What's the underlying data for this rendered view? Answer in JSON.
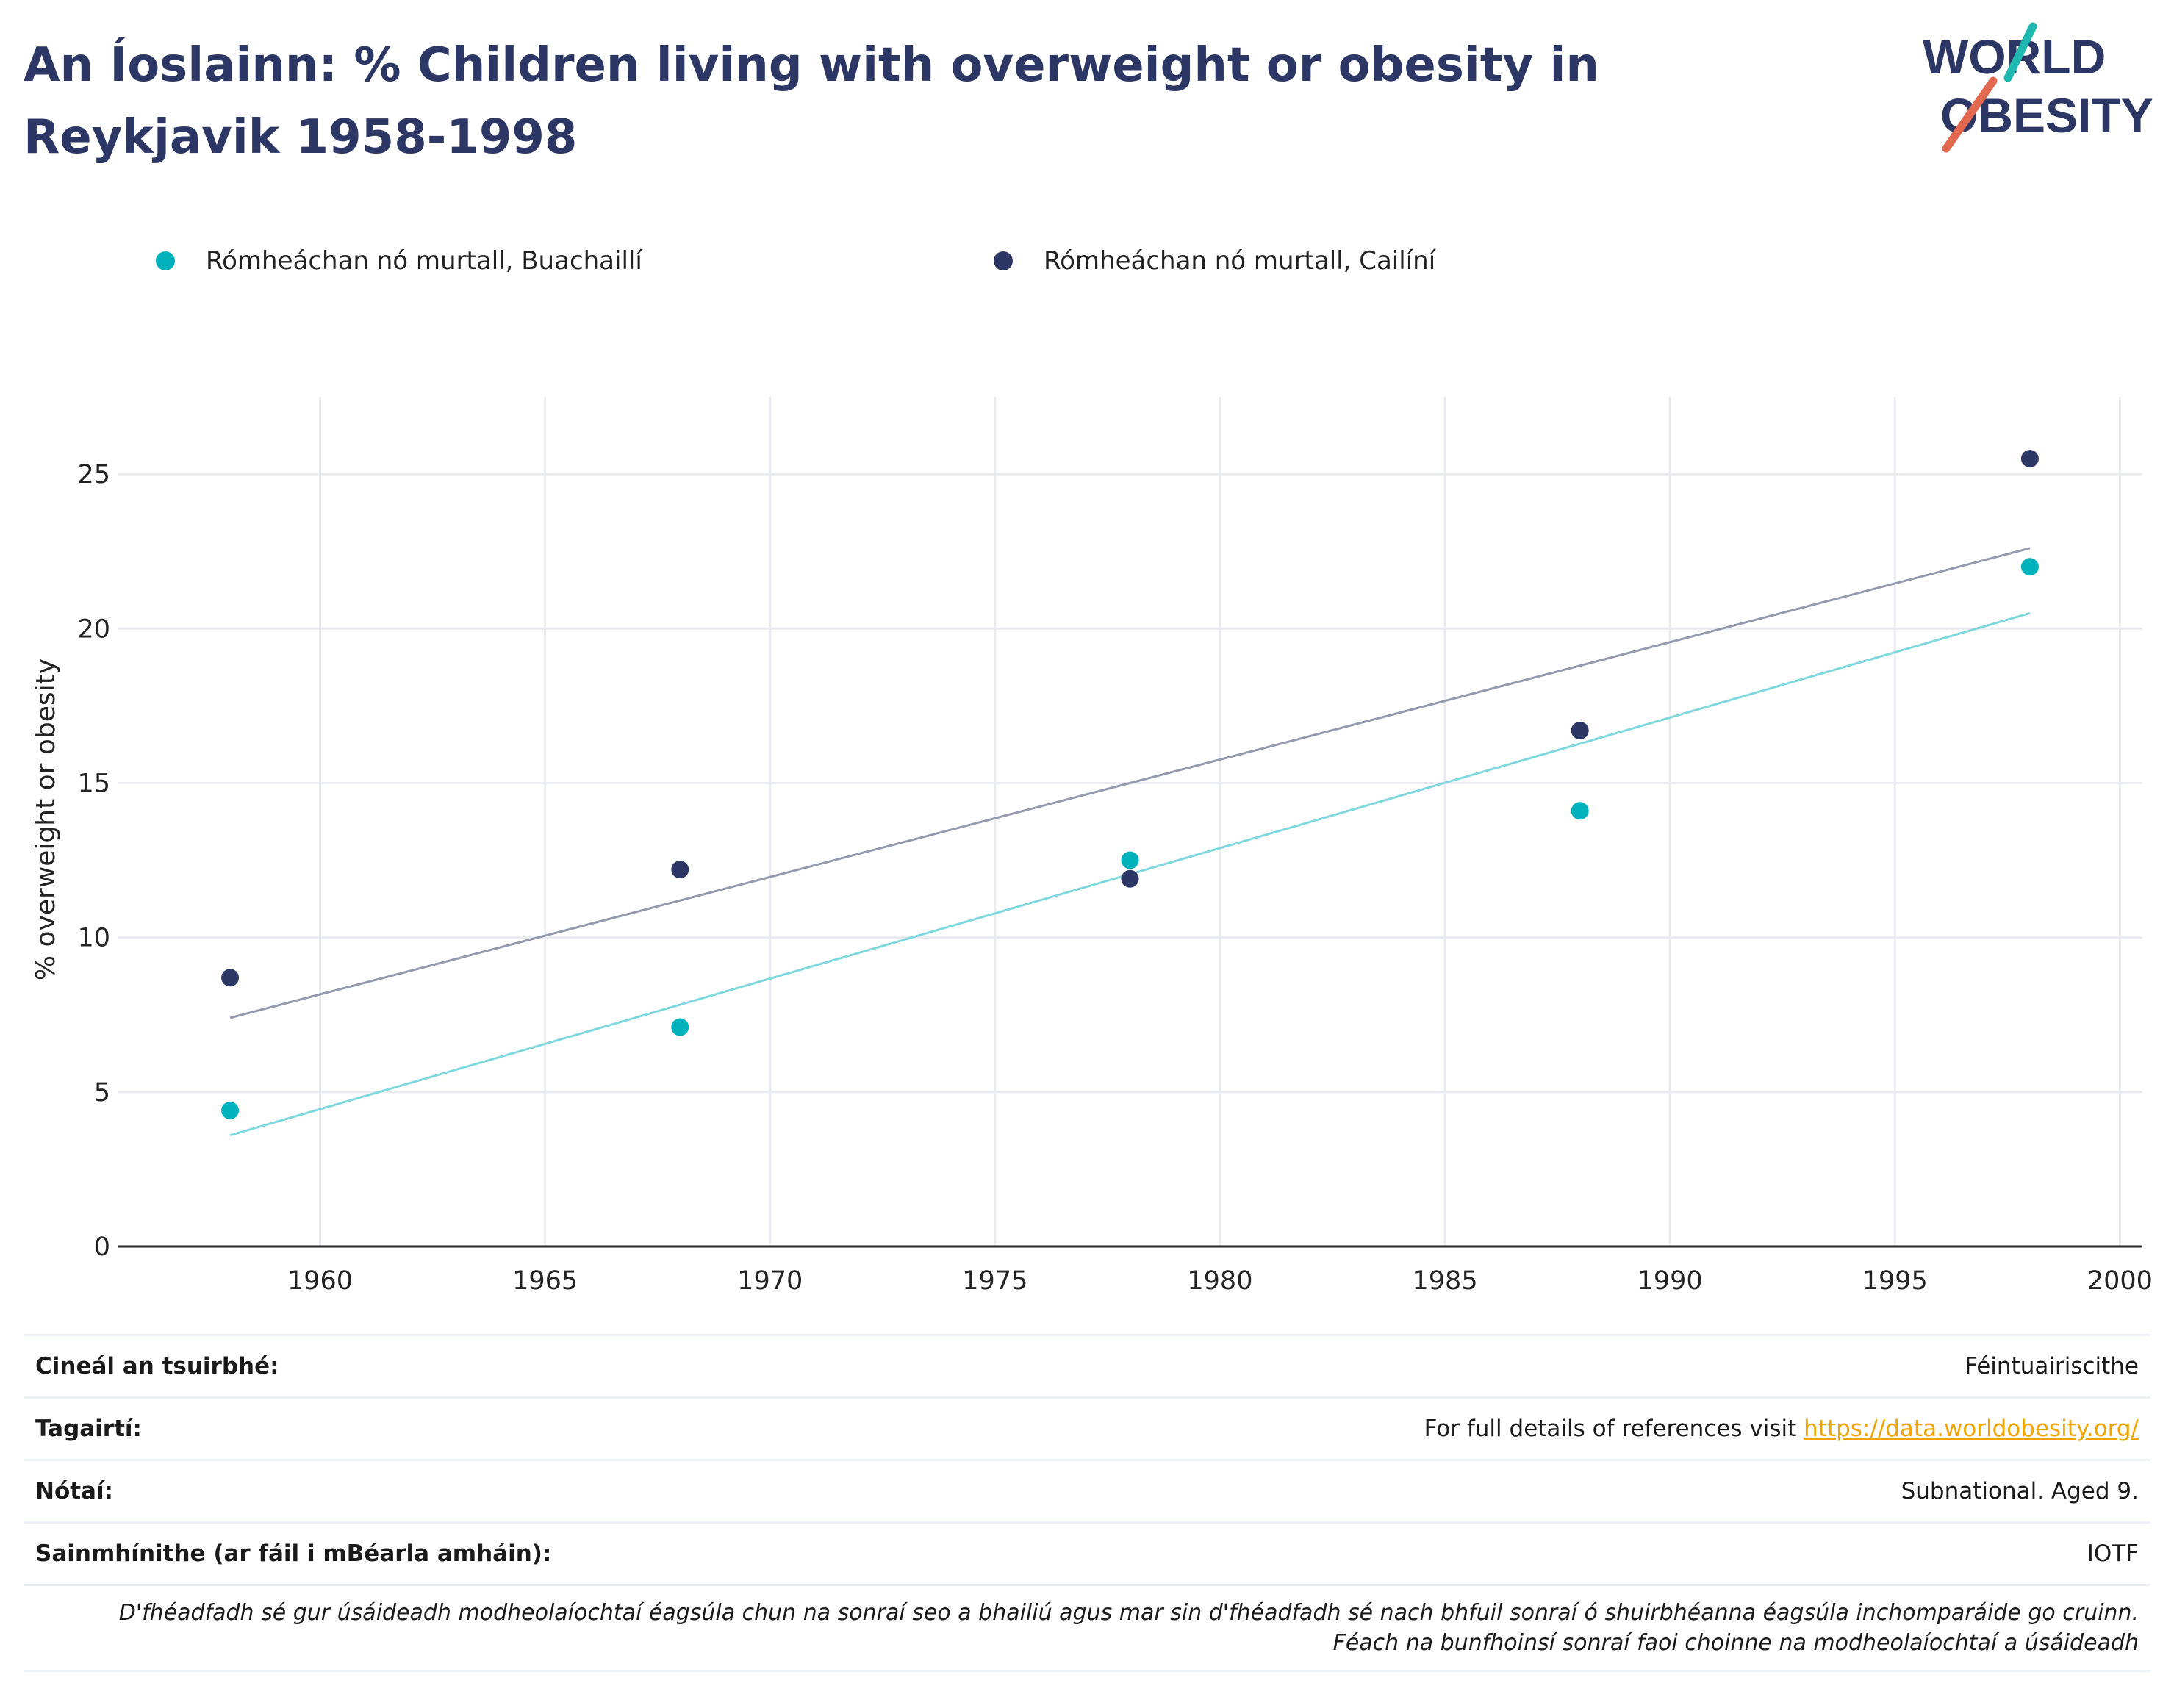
{
  "title": "An Íoslainn: % Children living with overweight or obesity in Reykjavik 1958-1998",
  "logo": {
    "line1": "WORLD",
    "line2": "OBESITY"
  },
  "legend": [
    {
      "label": "Rómheáchan nó murtall, Buachaillí",
      "color": "#00b2bc"
    },
    {
      "label": "Rómheáchan nó murtall, Cailíní",
      "color": "#2c3766"
    }
  ],
  "chart_data": {
    "type": "scatter",
    "title": "",
    "xlabel": "",
    "ylabel": "% overweight or obesity",
    "xlim": [
      1955.5,
      2000.5
    ],
    "ylim": [
      0,
      27.5
    ],
    "xticks": [
      1960,
      1965,
      1970,
      1975,
      1980,
      1985,
      1990,
      1995,
      2000
    ],
    "yticks": [
      0,
      5,
      10,
      15,
      20,
      25
    ],
    "grid": true,
    "legend_position": "top",
    "series": [
      {
        "name": "Rómheáchan nó murtall, Buachaillí",
        "color": "#00b2bc",
        "x": [
          1958,
          1968,
          1978,
          1988,
          1998
        ],
        "y": [
          4.4,
          7.1,
          12.5,
          14.1,
          22.0
        ],
        "trendline": {
          "x": [
            1958,
            1998
          ],
          "y": [
            3.6,
            20.5
          ],
          "color": "#7fd8dd"
        }
      },
      {
        "name": "Rómheáchan nó murtall, Cailíní",
        "color": "#2c3766",
        "x": [
          1958,
          1968,
          1978,
          1988,
          1998
        ],
        "y": [
          8.7,
          12.2,
          11.9,
          16.7,
          25.5
        ],
        "trendline": {
          "x": [
            1958,
            1998
          ],
          "y": [
            7.4,
            22.6
          ],
          "color": "#9499ad"
        }
      }
    ]
  },
  "info": {
    "rows": [
      {
        "key": "Cineál an tsuirbhé:",
        "value": "Féintuairiscithe"
      },
      {
        "key": "Tagairtí:",
        "value": "For full details of references visit ",
        "link": "https://data.worldobesity.org/"
      },
      {
        "key": "Nótaí:",
        "value": "Subnational. Aged 9."
      },
      {
        "key": "Sainmhínithe (ar fáil i mBéarla amháin):",
        "value": "IOTF"
      }
    ],
    "disclaimer_line1": "D'fhéadfadh sé gur úsáideadh modheolaíochtaí éagsúla chun na sonraí seo a bhailiú agus mar sin d'fhéadfadh sé nach bhfuil sonraí ó shuirbhéanna éagsúla inchomparáide go cruinn.",
    "disclaimer_line2": "Féach na bunfhoinsí sonraí faoi choinne na modheolaíochtaí a úsáideadh"
  }
}
